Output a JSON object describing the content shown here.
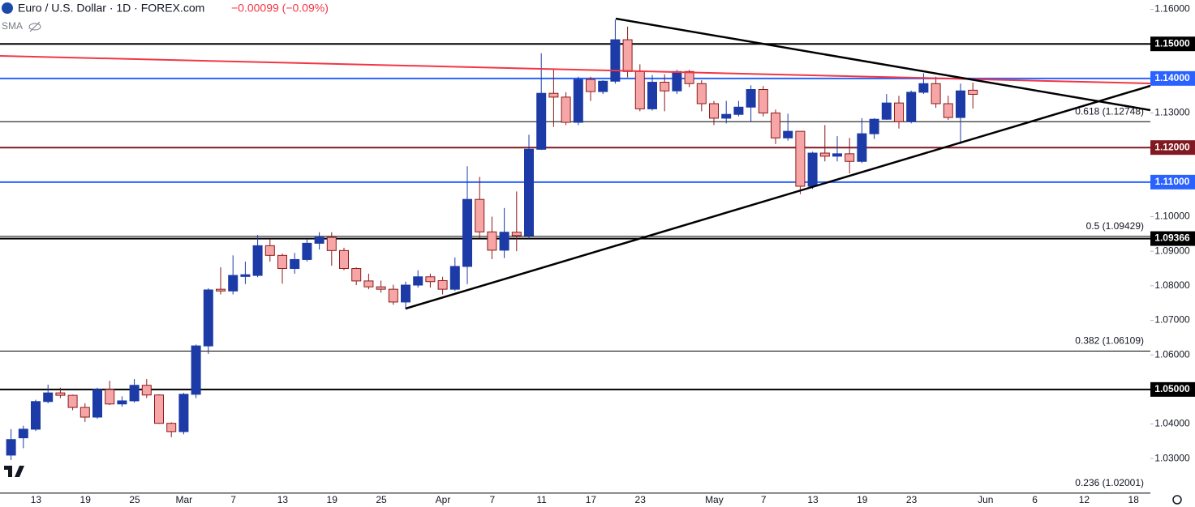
{
  "chart_data": {
    "type": "candlestick",
    "title": "Euro / U.S. Dollar · 1D · FOREX.com",
    "subtitle": "−0.00099 (−0.09%)",
    "indicator": "SMA",
    "categories": [
      null,
      null,
      "13",
      null,
      null,
      null,
      "19",
      null,
      null,
      null,
      "25",
      null,
      null,
      null,
      "Mar",
      null,
      null,
      null,
      "7",
      null,
      null,
      null,
      "13",
      null,
      null,
      null,
      "19",
      null,
      null,
      null,
      "25",
      null,
      null,
      null,
      null,
      "Apr",
      null,
      null,
      null,
      "7",
      null,
      null,
      null,
      "11",
      null,
      null,
      null,
      "17",
      null,
      null,
      null,
      "23",
      null,
      null,
      null,
      null,
      null,
      "May",
      null,
      null,
      null,
      "7",
      null,
      null,
      null,
      "13",
      null,
      null,
      null,
      "19",
      null,
      null,
      null,
      "23",
      null,
      null,
      null,
      null,
      null,
      "Jun",
      null,
      null,
      null,
      "6",
      null,
      null,
      null,
      "12",
      null,
      null,
      null,
      "18"
    ],
    "open": [
      1.031,
      1.036,
      1.0385,
      1.0465,
      1.049,
      1.0483,
      1.0448,
      1.042,
      1.05,
      1.0458,
      1.0467,
      1.0512,
      1.0484,
      1.0402,
      1.0378,
      1.0486,
      1.0626,
      1.079,
      1.0785,
      1.0827,
      1.083,
      1.0916,
      1.0888,
      1.085,
      1.0876,
      1.0923,
      1.094,
      1.0902,
      1.085,
      1.0814,
      1.0797,
      1.079,
      1.0753,
      1.0802,
      1.0826,
      1.0815,
      1.079,
      1.0856,
      1.105,
      1.0956,
      1.0903,
      1.0955,
      1.0945,
      1.1195,
      1.1357,
      1.1346,
      1.1273,
      1.1397,
      1.1362,
      1.1392,
      1.1512,
      1.142,
      1.1312,
      1.1389,
      1.1364,
      1.142,
      1.1385,
      1.1327,
      1.1285,
      1.1296,
      1.1317,
      1.1368,
      1.13,
      1.1228,
      1.1247,
      1.1088,
      1.1184,
      1.1175,
      1.1182,
      1.116,
      1.124,
      1.1282,
      1.1329,
      1.1275,
      1.136,
      1.1385,
      1.1327,
      1.1287,
      1.1366,
      null,
      null,
      null,
      null,
      null,
      null,
      null,
      null,
      null,
      null,
      null,
      null,
      null
    ],
    "high": [
      1.0385,
      1.0395,
      1.047,
      1.0514,
      1.0505,
      1.0485,
      1.046,
      1.0505,
      1.0525,
      1.048,
      1.053,
      1.053,
      1.0486,
      1.0405,
      1.049,
      1.063,
      1.0793,
      1.0854,
      1.0888,
      1.087,
      1.0947,
      1.0935,
      1.0893,
      1.0895,
      1.0935,
      1.0955,
      1.0955,
      1.091,
      1.0853,
      1.0835,
      1.0815,
      1.0803,
      1.0812,
      1.0845,
      1.0835,
      1.0826,
      1.0882,
      1.1146,
      1.1115,
      1.1,
      1.1025,
      1.1073,
      1.1237,
      1.1473,
      1.1425,
      1.136,
      1.1405,
      1.1405,
      1.1395,
      1.157,
      1.155,
      1.1441,
      1.141,
      1.1412,
      1.1425,
      1.1425,
      1.1395,
      1.1335,
      1.1335,
      1.1335,
      1.138,
      1.1378,
      1.131,
      1.1298,
      1.1247,
      1.1188,
      1.1265,
      1.1233,
      1.1228,
      1.1285,
      1.1285,
      1.1355,
      1.135,
      1.1365,
      1.1415,
      1.1405,
      1.135,
      1.1385,
      1.1388,
      null,
      null,
      null,
      null,
      null,
      null,
      null,
      null,
      null,
      null,
      null,
      null,
      null
    ],
    "low": [
      1.0296,
      1.033,
      1.038,
      1.046,
      1.0475,
      1.044,
      1.0406,
      1.0415,
      1.0455,
      1.045,
      1.0462,
      1.0475,
      1.04,
      1.0362,
      1.037,
      1.0475,
      1.0603,
      1.0775,
      1.0775,
      1.0805,
      1.0825,
      1.087,
      1.0806,
      1.0835,
      1.087,
      1.0905,
      1.0858,
      1.0845,
      1.0802,
      1.079,
      1.078,
      1.0745,
      1.0733,
      1.0795,
      1.0795,
      1.0775,
      1.0785,
      1.0805,
      1.0938,
      1.0877,
      1.088,
      1.09,
      1.0937,
      1.1193,
      1.126,
      1.1265,
      1.1265,
      1.1335,
      1.1355,
      1.1385,
      1.1403,
      1.1305,
      1.1307,
      1.1305,
      1.1355,
      1.1375,
      1.1305,
      1.1265,
      1.127,
      1.129,
      1.1275,
      1.129,
      1.121,
      1.122,
      1.1065,
      1.108,
      1.116,
      1.116,
      1.1125,
      1.1155,
      1.1225,
      1.128,
      1.1255,
      1.127,
      1.1355,
      1.1315,
      1.128,
      1.121,
      1.1313,
      null,
      null,
      null,
      null,
      null,
      null,
      null,
      null,
      null,
      null,
      null,
      null,
      null
    ],
    "close": [
      1.0355,
      1.0385,
      1.0465,
      1.049,
      1.0483,
      1.0448,
      1.042,
      1.05,
      1.0458,
      1.0467,
      1.0512,
      1.0484,
      1.0402,
      1.0378,
      1.0486,
      1.0626,
      1.0788,
      1.0785,
      1.083,
      1.0832,
      1.0916,
      1.0888,
      1.085,
      1.0876,
      1.0923,
      1.094,
      1.0902,
      1.085,
      1.0814,
      1.0797,
      1.079,
      1.0753,
      1.0802,
      1.0826,
      1.0812,
      1.079,
      1.0856,
      1.105,
      1.0956,
      1.0903,
      1.0955,
      1.0945,
      1.1195,
      1.1357,
      1.1346,
      1.1273,
      1.1397,
      1.1362,
      1.1392,
      1.1512,
      1.142,
      1.1312,
      1.1389,
      1.1364,
      1.142,
      1.1385,
      1.1327,
      1.1285,
      1.1296,
      1.1317,
      1.1368,
      1.13,
      1.1228,
      1.1247,
      1.1088,
      1.1184,
      1.1175,
      1.1182,
      1.116,
      1.124,
      1.1282,
      1.1329,
      1.1275,
      1.136,
      1.1385,
      1.1327,
      1.1287,
      1.1364,
      1.1354,
      null,
      null,
      null,
      null,
      null,
      null,
      null,
      null,
      null,
      null,
      null,
      null,
      null
    ],
    "up_color": "#1c3ba6",
    "down_color": "#f6a6a6",
    "down_edge_color": "#8b1a1a",
    "ylim": [
      1.0195,
      1.1627
    ],
    "yticks": [
      {
        "value": 1.16,
        "label": "1.16000"
      },
      {
        "value": 1.15,
        "label": "1.15000"
      },
      {
        "value": 1.14,
        "label": "1.14000"
      },
      {
        "value": 1.13,
        "label": "1.13000"
      },
      {
        "value": 1.12,
        "label": "1.12000"
      },
      {
        "value": 1.11,
        "label": "1.11000"
      },
      {
        "value": 1.1,
        "label": "1.10000"
      },
      {
        "value": 1.09,
        "label": "1.09000"
      },
      {
        "value": 1.08,
        "label": "1.08000"
      },
      {
        "value": 1.07,
        "label": "1.07000"
      },
      {
        "value": 1.06,
        "label": "1.06000"
      },
      {
        "value": 1.05,
        "label": "1.05000"
      },
      {
        "value": 1.04,
        "label": "1.04000"
      },
      {
        "value": 1.03,
        "label": "1.03000"
      }
    ],
    "levels": [
      {
        "value": 1.15,
        "label": "1.15000",
        "color": "#000000"
      },
      {
        "value": 1.14,
        "label": "1.14000",
        "color": "#2962ff"
      },
      {
        "value": 1.12,
        "label": "1.12000",
        "color": "#801922"
      },
      {
        "value": 1.11,
        "label": "1.11000",
        "color": "#2962ff"
      },
      {
        "value": 1.09366,
        "label": "1.09366",
        "color": "#000000"
      },
      {
        "value": 1.05,
        "label": "1.05000",
        "color": "#000000"
      }
    ],
    "fib_levels": [
      {
        "value": 1.12748,
        "label": "0.618 (1.12748)"
      },
      {
        "value": 1.09429,
        "label": "0.5 (1.09429)"
      },
      {
        "value": 1.06109,
        "label": "0.382 (1.06109)"
      },
      {
        "value": 1.02001,
        "label": "0.236 (1.02001)"
      }
    ]
  }
}
